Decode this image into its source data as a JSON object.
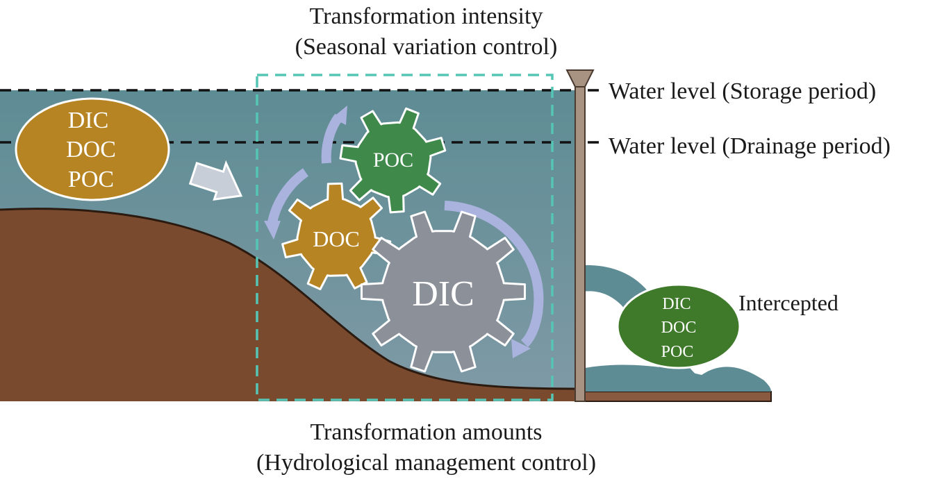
{
  "title_top": {
    "line1": "Transformation intensity",
    "line2": "(Seasonal variation control)"
  },
  "title_bottom": {
    "line1": "Transformation amounts",
    "line2": "(Hydrological management control)"
  },
  "water_levels": {
    "storage": "Water level (Storage period)",
    "drainage": "Water level (Drainage period)"
  },
  "input_pool": {
    "items": [
      "DIC",
      "DOC",
      "POC"
    ]
  },
  "gears": {
    "poc": "POC",
    "doc": "DOC",
    "dic": "DIC"
  },
  "output_pool": {
    "items": [
      "DIC",
      "DOC",
      "POC"
    ],
    "label": "Intercepted"
  },
  "colors": {
    "water": "#5e8c94",
    "soil": "#7a4a2f",
    "dic_gear": "#8c9098",
    "doc_gear": "#b78424",
    "poc_gear": "#3f8a4b",
    "input_ellipse": "#b78424",
    "output_ellipse": "#3f7a2b",
    "dashed_box": "#55c6b5",
    "cycle_arrows": "#aab3dd",
    "dam": "#a89382"
  }
}
